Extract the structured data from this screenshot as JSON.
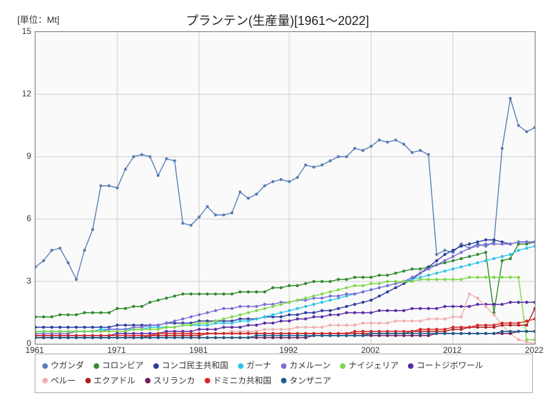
{
  "unit_label": "[単位：Mt]",
  "title": "プランテン(生産量)[1961～2022]",
  "chart": {
    "type": "line",
    "background_color": "#fafafa",
    "grid_color": "#cccccc",
    "xlim": [
      1961,
      2022
    ],
    "ylim": [
      0,
      15
    ],
    "xticks": [
      1961,
      1971,
      1981,
      1992,
      2002,
      2012,
      2022
    ],
    "yticks": [
      0,
      3,
      6,
      9,
      12,
      15
    ],
    "label_fontsize": 12,
    "title_fontsize": 18,
    "marker_radius": 2.2,
    "line_width": 1.4,
    "series": [
      {
        "name": "ウガンダ",
        "color": "#5b7fb5",
        "values": [
          3.7,
          4.0,
          4.5,
          4.6,
          3.9,
          3.1,
          4.5,
          5.5,
          7.6,
          7.6,
          7.5,
          8.4,
          9.0,
          9.1,
          9.0,
          8.1,
          8.9,
          8.8,
          5.8,
          5.7,
          6.1,
          6.6,
          6.2,
          6.2,
          6.3,
          7.3,
          7.0,
          7.2,
          7.6,
          7.8,
          7.9,
          7.8,
          8.0,
          8.6,
          8.5,
          8.6,
          8.8,
          9.0,
          9.0,
          9.4,
          9.3,
          9.5,
          9.8,
          9.7,
          9.8,
          9.6,
          9.2,
          9.3,
          9.1,
          4.3,
          4.5,
          4.4,
          4.8,
          4.6,
          4.8,
          4.7,
          4.9,
          9.4,
          11.8,
          10.5,
          10.2,
          10.4
        ]
      },
      {
        "name": "コロンビア",
        "color": "#2e8b2e",
        "values": [
          1.3,
          1.3,
          1.3,
          1.4,
          1.4,
          1.4,
          1.5,
          1.5,
          1.5,
          1.5,
          1.7,
          1.7,
          1.8,
          1.8,
          2.0,
          2.1,
          2.2,
          2.3,
          2.4,
          2.4,
          2.4,
          2.4,
          2.4,
          2.4,
          2.4,
          2.5,
          2.5,
          2.5,
          2.5,
          2.7,
          2.7,
          2.8,
          2.8,
          2.9,
          3.0,
          3.0,
          3.0,
          3.1,
          3.1,
          3.2,
          3.2,
          3.2,
          3.3,
          3.3,
          3.4,
          3.5,
          3.6,
          3.6,
          3.7,
          3.8,
          3.9,
          4.0,
          4.1,
          4.2,
          4.3,
          4.4,
          1.5,
          4.0,
          4.1,
          4.8,
          4.8,
          4.9
        ]
      },
      {
        "name": "コンゴ民主共和国",
        "color": "#2e3e9e",
        "values": [
          0.8,
          0.8,
          0.8,
          0.8,
          0.8,
          0.8,
          0.8,
          0.8,
          0.8,
          0.8,
          0.9,
          0.9,
          0.9,
          0.9,
          0.9,
          0.9,
          1.0,
          1.0,
          1.0,
          1.0,
          1.1,
          1.1,
          1.1,
          1.1,
          1.1,
          1.2,
          1.2,
          1.2,
          1.3,
          1.3,
          1.3,
          1.4,
          1.4,
          1.5,
          1.5,
          1.6,
          1.6,
          1.7,
          1.8,
          1.9,
          2.0,
          2.1,
          2.3,
          2.5,
          2.7,
          2.9,
          3.1,
          3.4,
          3.7,
          4.0,
          4.3,
          4.5,
          4.7,
          4.8,
          4.9,
          5.0,
          5.0,
          4.9,
          4.8,
          4.9,
          4.9,
          4.9
        ]
      },
      {
        "name": "ガーナ",
        "color": "#2cc4e8",
        "values": [
          0.6,
          0.6,
          0.6,
          0.6,
          0.6,
          0.6,
          0.6,
          0.6,
          0.7,
          0.7,
          0.7,
          0.7,
          0.7,
          0.7,
          0.8,
          0.8,
          0.8,
          0.8,
          0.9,
          0.9,
          0.9,
          0.9,
          1.0,
          1.0,
          1.0,
          1.1,
          1.1,
          1.2,
          1.3,
          1.4,
          1.5,
          1.6,
          1.7,
          1.8,
          1.9,
          2.0,
          2.1,
          2.2,
          2.3,
          2.4,
          2.5,
          2.6,
          2.7,
          2.8,
          2.9,
          3.0,
          3.1,
          3.2,
          3.3,
          3.4,
          3.5,
          3.6,
          3.7,
          3.8,
          3.9,
          4.0,
          4.1,
          4.2,
          4.3,
          4.5,
          4.6,
          4.7
        ]
      },
      {
        "name": "カメルーン",
        "color": "#7a6fd6",
        "values": [
          0.5,
          0.5,
          0.5,
          0.5,
          0.5,
          0.6,
          0.6,
          0.6,
          0.6,
          0.7,
          0.7,
          0.7,
          0.8,
          0.8,
          0.9,
          0.9,
          1.0,
          1.1,
          1.2,
          1.3,
          1.4,
          1.5,
          1.6,
          1.7,
          1.7,
          1.8,
          1.8,
          1.8,
          1.9,
          1.9,
          2.0,
          2.0,
          2.1,
          2.1,
          2.2,
          2.2,
          2.3,
          2.3,
          2.4,
          2.4,
          2.5,
          2.6,
          2.7,
          2.8,
          2.9,
          3.0,
          3.2,
          3.4,
          3.6,
          3.8,
          4.0,
          4.2,
          4.4,
          4.6,
          4.7,
          4.8,
          4.8,
          4.8,
          4.8,
          4.9,
          4.9,
          4.9
        ]
      },
      {
        "name": "ナイジェリア",
        "color": "#7fd84a",
        "values": [
          0.6,
          0.6,
          0.6,
          0.6,
          0.6,
          0.6,
          0.6,
          0.6,
          0.6,
          0.6,
          0.6,
          0.6,
          0.7,
          0.7,
          0.7,
          0.7,
          0.8,
          0.8,
          0.9,
          0.9,
          1.0,
          1.0,
          1.1,
          1.2,
          1.3,
          1.4,
          1.5,
          1.6,
          1.7,
          1.8,
          1.9,
          2.0,
          2.1,
          2.2,
          2.3,
          2.4,
          2.5,
          2.6,
          2.7,
          2.8,
          2.8,
          2.9,
          2.9,
          3.0,
          3.0,
          3.0,
          3.0,
          3.1,
          3.1,
          3.1,
          3.1,
          3.1,
          3.1,
          3.2,
          3.2,
          3.2,
          3.2,
          3.2,
          3.2,
          3.2,
          0.2,
          0.2
        ]
      },
      {
        "name": "コートジボワール",
        "color": "#5a2da6",
        "values": [
          0.4,
          0.4,
          0.4,
          0.4,
          0.4,
          0.4,
          0.4,
          0.4,
          0.4,
          0.4,
          0.5,
          0.5,
          0.5,
          0.5,
          0.5,
          0.5,
          0.6,
          0.6,
          0.6,
          0.6,
          0.7,
          0.7,
          0.7,
          0.8,
          0.8,
          0.8,
          0.9,
          0.9,
          1.0,
          1.0,
          1.1,
          1.1,
          1.2,
          1.2,
          1.3,
          1.3,
          1.4,
          1.4,
          1.5,
          1.5,
          1.5,
          1.5,
          1.6,
          1.6,
          1.6,
          1.6,
          1.7,
          1.7,
          1.7,
          1.7,
          1.8,
          1.8,
          1.8,
          1.8,
          1.9,
          1.9,
          1.9,
          1.9,
          2.0,
          2.0,
          2.0,
          2.0
        ]
      },
      {
        "name": "ペルー",
        "color": "#f0b0b0",
        "values": [
          0.3,
          0.3,
          0.3,
          0.3,
          0.3,
          0.3,
          0.3,
          0.3,
          0.3,
          0.3,
          0.3,
          0.3,
          0.4,
          0.4,
          0.4,
          0.4,
          0.4,
          0.4,
          0.4,
          0.5,
          0.5,
          0.5,
          0.5,
          0.5,
          0.6,
          0.6,
          0.6,
          0.6,
          0.7,
          0.7,
          0.7,
          0.7,
          0.8,
          0.8,
          0.8,
          0.8,
          0.9,
          0.9,
          0.9,
          0.9,
          1.0,
          1.0,
          1.0,
          1.0,
          1.1,
          1.1,
          1.1,
          1.1,
          1.2,
          1.2,
          1.2,
          1.3,
          1.3,
          2.4,
          2.2,
          1.8,
          1.4,
          0.9,
          0.5,
          0.2,
          0.1,
          0.0
        ]
      },
      {
        "name": "エクアドル",
        "color": "#b02020",
        "values": [
          0.3,
          0.3,
          0.3,
          0.3,
          0.3,
          0.3,
          0.3,
          0.3,
          0.3,
          0.3,
          0.3,
          0.3,
          0.3,
          0.3,
          0.4,
          0.4,
          0.4,
          0.4,
          0.4,
          0.4,
          0.4,
          0.5,
          0.5,
          0.5,
          0.5,
          0.5,
          0.5,
          0.5,
          0.5,
          0.5,
          0.5,
          0.5,
          0.5,
          0.5,
          0.5,
          0.5,
          0.5,
          0.5,
          0.5,
          0.5,
          0.5,
          0.5,
          0.5,
          0.5,
          0.5,
          0.5,
          0.6,
          0.6,
          0.6,
          0.6,
          0.6,
          0.7,
          0.7,
          0.8,
          0.8,
          0.8,
          0.8,
          0.9,
          0.9,
          0.9,
          0.9,
          1.7
        ]
      },
      {
        "name": "スリランカ",
        "color": "#6a1e5c",
        "values": [
          0.3,
          0.3,
          0.3,
          0.3,
          0.3,
          0.3,
          0.3,
          0.3,
          0.3,
          0.3,
          0.3,
          0.3,
          0.3,
          0.3,
          0.3,
          0.3,
          0.3,
          0.3,
          0.3,
          0.3,
          0.3,
          0.3,
          0.3,
          0.3,
          0.3,
          0.3,
          0.3,
          0.3,
          0.3,
          0.3,
          0.3,
          0.3,
          0.3,
          0.3,
          0.4,
          0.4,
          0.4,
          0.4,
          0.4,
          0.4,
          0.4,
          0.4,
          0.4,
          0.4,
          0.4,
          0.4,
          0.4,
          0.4,
          0.4,
          0.5,
          0.5,
          0.5,
          0.5,
          0.5,
          0.5,
          0.5,
          0.5,
          0.5,
          0.5,
          0.6,
          0.6,
          0.6
        ]
      },
      {
        "name": "ドミニカ共和国",
        "color": "#d62728",
        "values": [
          0.4,
          0.4,
          0.4,
          0.4,
          0.4,
          0.4,
          0.4,
          0.4,
          0.4,
          0.4,
          0.4,
          0.4,
          0.4,
          0.4,
          0.4,
          0.5,
          0.5,
          0.5,
          0.5,
          0.5,
          0.5,
          0.5,
          0.5,
          0.5,
          0.5,
          0.5,
          0.5,
          0.5,
          0.5,
          0.5,
          0.5,
          0.5,
          0.5,
          0.5,
          0.5,
          0.5,
          0.5,
          0.5,
          0.5,
          0.6,
          0.6,
          0.6,
          0.6,
          0.6,
          0.6,
          0.6,
          0.6,
          0.7,
          0.7,
          0.7,
          0.7,
          0.8,
          0.8,
          0.8,
          0.9,
          0.9,
          0.9,
          1.0,
          1.0,
          1.0,
          1.1,
          1.2
        ]
      },
      {
        "name": "タンザニア",
        "color": "#1a5c8c",
        "values": [
          0.3,
          0.3,
          0.3,
          0.3,
          0.3,
          0.3,
          0.3,
          0.3,
          0.3,
          0.3,
          0.3,
          0.3,
          0.3,
          0.3,
          0.3,
          0.3,
          0.3,
          0.3,
          0.3,
          0.3,
          0.3,
          0.3,
          0.3,
          0.3,
          0.3,
          0.3,
          0.3,
          0.4,
          0.4,
          0.4,
          0.4,
          0.4,
          0.4,
          0.4,
          0.4,
          0.4,
          0.4,
          0.4,
          0.4,
          0.4,
          0.4,
          0.5,
          0.5,
          0.5,
          0.5,
          0.5,
          0.5,
          0.5,
          0.5,
          0.5,
          0.5,
          0.5,
          0.5,
          0.5,
          0.5,
          0.5,
          0.5,
          0.6,
          0.6,
          0.6,
          0.6,
          0.6
        ]
      }
    ]
  }
}
